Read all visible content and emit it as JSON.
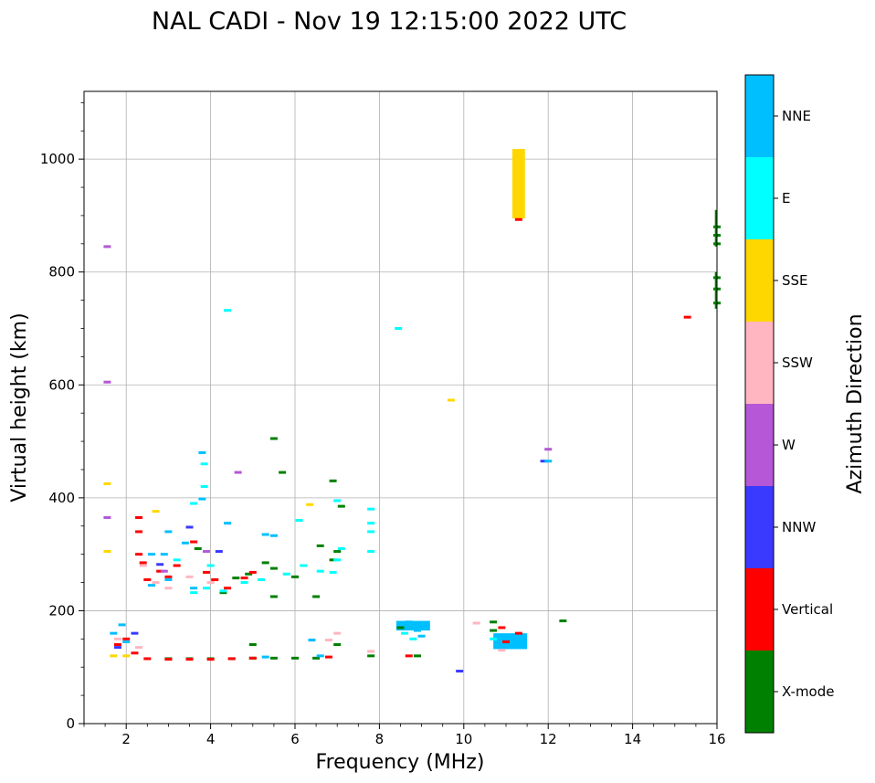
{
  "chart_data": {
    "type": "scatter",
    "title": "NAL CADI - Nov 19 12:15:00 2022 UTC",
    "xlabel": "Frequency (MHz)",
    "ylabel": "Virtual height (km)",
    "xlim": [
      1,
      16
    ],
    "ylim": [
      0,
      1120
    ],
    "xticks": [
      2,
      4,
      6,
      8,
      10,
      12,
      14,
      16
    ],
    "yticks": [
      0,
      200,
      400,
      600,
      800,
      1000
    ],
    "grid": true,
    "colorbar": {
      "label": "Azimuth Direction",
      "categories": [
        "X-mode",
        "Vertical",
        "NNW",
        "W",
        "SSW",
        "SSE",
        "E",
        "NNE"
      ],
      "colors": {
        "X-mode": "#008000",
        "Vertical": "#ff0000",
        "NNW": "#3a3aff",
        "W": "#b557d6",
        "SSW": "#ffb6c1",
        "SSE": "#ffd700",
        "E": "#00ffff",
        "NNE": "#00bfff"
      }
    },
    "series": [
      {
        "name": "X-mode",
        "points": [
          [
            5.5,
            505
          ],
          [
            5.7,
            445
          ],
          [
            6.9,
            430
          ],
          [
            6.6,
            315
          ],
          [
            6.9,
            290
          ],
          [
            7.0,
            305
          ],
          [
            6.0,
            260
          ],
          [
            5.3,
            285
          ],
          [
            5.5,
            275
          ],
          [
            4.6,
            258
          ],
          [
            4.9,
            265
          ],
          [
            5.5,
            225
          ],
          [
            6.5,
            225
          ],
          [
            3.0,
            115
          ],
          [
            3.5,
            115
          ],
          [
            4.0,
            115
          ],
          [
            4.5,
            115
          ],
          [
            5.0,
            116
          ],
          [
            5.5,
            116
          ],
          [
            6.0,
            116
          ],
          [
            6.5,
            116
          ],
          [
            5.0,
            140
          ],
          [
            7.0,
            140
          ],
          [
            7.8,
            120
          ],
          [
            8.5,
            170
          ],
          [
            8.9,
            120
          ],
          [
            10.7,
            180
          ],
          [
            10.7,
            165
          ],
          [
            12.35,
            182
          ],
          [
            16.0,
            880
          ],
          [
            16.0,
            865
          ],
          [
            16.0,
            850
          ],
          [
            16.0,
            790
          ],
          [
            16.0,
            770
          ],
          [
            16.0,
            745
          ],
          [
            3.7,
            310
          ],
          [
            4.3,
            232
          ],
          [
            7.1,
            385
          ]
        ]
      },
      {
        "name": "Vertical",
        "points": [
          [
            2.5,
            115
          ],
          [
            3.0,
            114
          ],
          [
            3.5,
            114
          ],
          [
            4.0,
            114
          ],
          [
            4.5,
            115
          ],
          [
            5.0,
            116
          ],
          [
            6.8,
            118
          ],
          [
            2.3,
            300
          ],
          [
            2.4,
            285
          ],
          [
            2.5,
            255
          ],
          [
            2.8,
            270
          ],
          [
            3.0,
            260
          ],
          [
            3.2,
            280
          ],
          [
            3.9,
            268
          ],
          [
            4.1,
            255
          ],
          [
            4.4,
            240
          ],
          [
            4.8,
            258
          ],
          [
            5.0,
            268
          ],
          [
            2.0,
            150
          ],
          [
            2.2,
            125
          ],
          [
            1.8,
            140
          ],
          [
            8.7,
            120
          ],
          [
            10.9,
            170
          ],
          [
            11.0,
            145
          ],
          [
            11.3,
            160
          ],
          [
            15.3,
            720
          ],
          [
            11.3,
            893
          ],
          [
            2.3,
            365
          ],
          [
            2.3,
            340
          ],
          [
            3.6,
            322
          ]
        ]
      },
      {
        "name": "NNW",
        "points": [
          [
            9.9,
            93
          ],
          [
            11.9,
            465
          ],
          [
            2.8,
            282
          ],
          [
            3.5,
            348
          ],
          [
            4.2,
            305
          ],
          [
            1.8,
            135
          ],
          [
            2.2,
            160
          ]
        ]
      },
      {
        "name": "W",
        "points": [
          [
            4.65,
            445
          ],
          [
            12.0,
            486
          ],
          [
            2.9,
            270
          ],
          [
            1.55,
            845
          ],
          [
            1.55,
            605
          ],
          [
            1.55,
            365
          ],
          [
            3.9,
            305
          ],
          [
            6.4,
            148
          ]
        ]
      },
      {
        "name": "SSW",
        "points": [
          [
            10.3,
            178
          ],
          [
            10.9,
            130
          ],
          [
            7.0,
            160
          ],
          [
            6.8,
            148
          ],
          [
            2.4,
            280
          ],
          [
            2.7,
            250
          ],
          [
            3.5,
            260
          ],
          [
            1.8,
            150
          ],
          [
            2.3,
            135
          ],
          [
            7.8,
            128
          ],
          [
            3.0,
            240
          ],
          [
            4.0,
            250
          ]
        ]
      },
      {
        "name": "SSE",
        "points": [
          [
            11.3,
            1010
          ],
          [
            11.3,
            985
          ],
          [
            11.3,
            960
          ],
          [
            11.3,
            935
          ],
          [
            11.3,
            910
          ],
          [
            9.7,
            573
          ],
          [
            6.35,
            388
          ],
          [
            2.7,
            376
          ],
          [
            1.55,
            425
          ],
          [
            1.55,
            305
          ],
          [
            2.0,
            120
          ],
          [
            1.7,
            120
          ]
        ]
      },
      {
        "name": "E",
        "points": [
          [
            8.45,
            700
          ],
          [
            4.4,
            732
          ],
          [
            3.85,
            460
          ],
          [
            3.85,
            420
          ],
          [
            3.6,
            390
          ],
          [
            7.0,
            395
          ],
          [
            7.8,
            380
          ],
          [
            7.8,
            355
          ],
          [
            7.8,
            340
          ],
          [
            7.8,
            305
          ],
          [
            7.1,
            310
          ],
          [
            7.0,
            290
          ],
          [
            6.6,
            270
          ],
          [
            6.9,
            268
          ],
          [
            6.2,
            280
          ],
          [
            5.8,
            265
          ],
          [
            5.2,
            255
          ],
          [
            4.8,
            250
          ],
          [
            3.6,
            232
          ],
          [
            3.9,
            240
          ],
          [
            4.0,
            280
          ],
          [
            3.2,
            290
          ],
          [
            8.6,
            160
          ],
          [
            8.8,
            150
          ],
          [
            10.7,
            150
          ],
          [
            6.1,
            360
          ],
          [
            4.3,
            235
          ]
        ]
      },
      {
        "name": "NNE",
        "points": [
          [
            8.7,
            180
          ],
          [
            8.7,
            173
          ],
          [
            8.9,
            165
          ],
          [
            9.0,
            155
          ],
          [
            10.8,
            155
          ],
          [
            11.2,
            148
          ],
          [
            11.4,
            140
          ],
          [
            3.8,
            480
          ],
          [
            3.8,
            398
          ],
          [
            3.0,
            340
          ],
          [
            2.6,
            300
          ],
          [
            2.9,
            300
          ],
          [
            3.0,
            255
          ],
          [
            2.6,
            245
          ],
          [
            3.4,
            320
          ],
          [
            4.4,
            355
          ],
          [
            5.3,
            335
          ],
          [
            5.5,
            333
          ],
          [
            1.7,
            160
          ],
          [
            1.9,
            175
          ],
          [
            2.0,
            145
          ],
          [
            6.6,
            120
          ],
          [
            5.3,
            118
          ],
          [
            6.4,
            148
          ],
          [
            12.0,
            465
          ],
          [
            3.6,
            240
          ]
        ]
      }
    ],
    "blocks": [
      {
        "name": "SSE",
        "x0": 11.15,
        "x1": 11.45,
        "y0": 895,
        "y1": 1018
      },
      {
        "name": "NNE",
        "x0": 10.7,
        "x1": 11.5,
        "y0": 132,
        "y1": 160
      },
      {
        "name": "NNE",
        "x0": 8.4,
        "x1": 9.2,
        "y0": 165,
        "y1": 182
      },
      {
        "name": "X-mode",
        "x0": 15.95,
        "x1": 16.0,
        "y0": 735,
        "y1": 800
      },
      {
        "name": "X-mode",
        "x0": 15.95,
        "x1": 16.0,
        "y0": 845,
        "y1": 910
      }
    ]
  }
}
